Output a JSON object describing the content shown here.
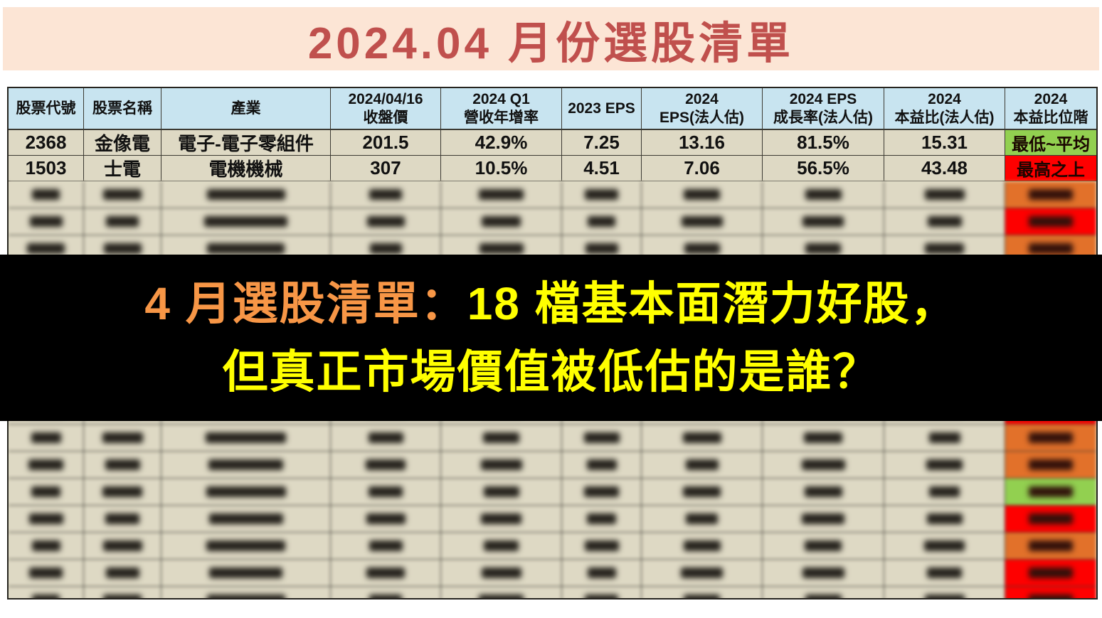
{
  "title": "2024.04 月份選股清單",
  "overlay": {
    "line1_prefix": "4 月選股清單：",
    "line1_main": "18 檔基本面潛力好股，",
    "line2": "但真正市場價值被低估的是誰？"
  },
  "table": {
    "headers": [
      "股票代號",
      "股票名稱",
      "產業",
      "2024/04/16\n收盤價",
      "2024 Q1\n營收年增率",
      "2023 EPS",
      "2024\nEPS(法人估)",
      "2024 EPS\n成長率(法人估)",
      "2024\n本益比(法人估)",
      "2024\n本益比位階"
    ],
    "rows": [
      {
        "code": "2368",
        "name": "金像電",
        "industry": "電子-電子零組件",
        "close": "201.5",
        "rev_yoy": "42.9%",
        "eps_2023": "7.25",
        "eps_2024_est": "13.16",
        "eps_growth_est": "81.5%",
        "pe_est": "15.31",
        "pe_rank": "最低~平均",
        "pe_rank_color": "green"
      },
      {
        "code": "1503",
        "name": "士電",
        "industry": "電機機械",
        "close": "307",
        "rev_yoy": "10.5%",
        "eps_2023": "4.51",
        "eps_2024_est": "7.06",
        "eps_growth_est": "56.5%",
        "pe_est": "43.48",
        "pe_rank": "最高之上",
        "pe_rank_color": "red"
      }
    ],
    "blurred_rows": [
      {
        "badge": "orange"
      },
      {
        "badge": "red"
      },
      {
        "badge": "orange"
      },
      {
        "badge": "red"
      },
      {
        "badge": "orange"
      },
      {
        "badge": "green"
      },
      {
        "badge": "orange"
      },
      {
        "badge": "red"
      },
      {
        "badge": "red"
      },
      {
        "badge": "orange"
      },
      {
        "badge": "orange"
      },
      {
        "badge": "green"
      },
      {
        "badge": "red"
      },
      {
        "badge": "orange"
      },
      {
        "badge": "red"
      },
      {
        "badge": "red"
      }
    ]
  },
  "colors": {
    "title_text": "#c0504d",
    "title_band_bg": "#fce5d5",
    "header_bg": "#c8e4f0",
    "row_bg": "#ded9c4",
    "badge_green": "#92d050",
    "badge_red": "#fe0000",
    "badge_orange": "#e2712a",
    "overlay_bg": "#000000",
    "overlay_orange": "#f79646",
    "overlay_yellow": "#ffff00"
  }
}
